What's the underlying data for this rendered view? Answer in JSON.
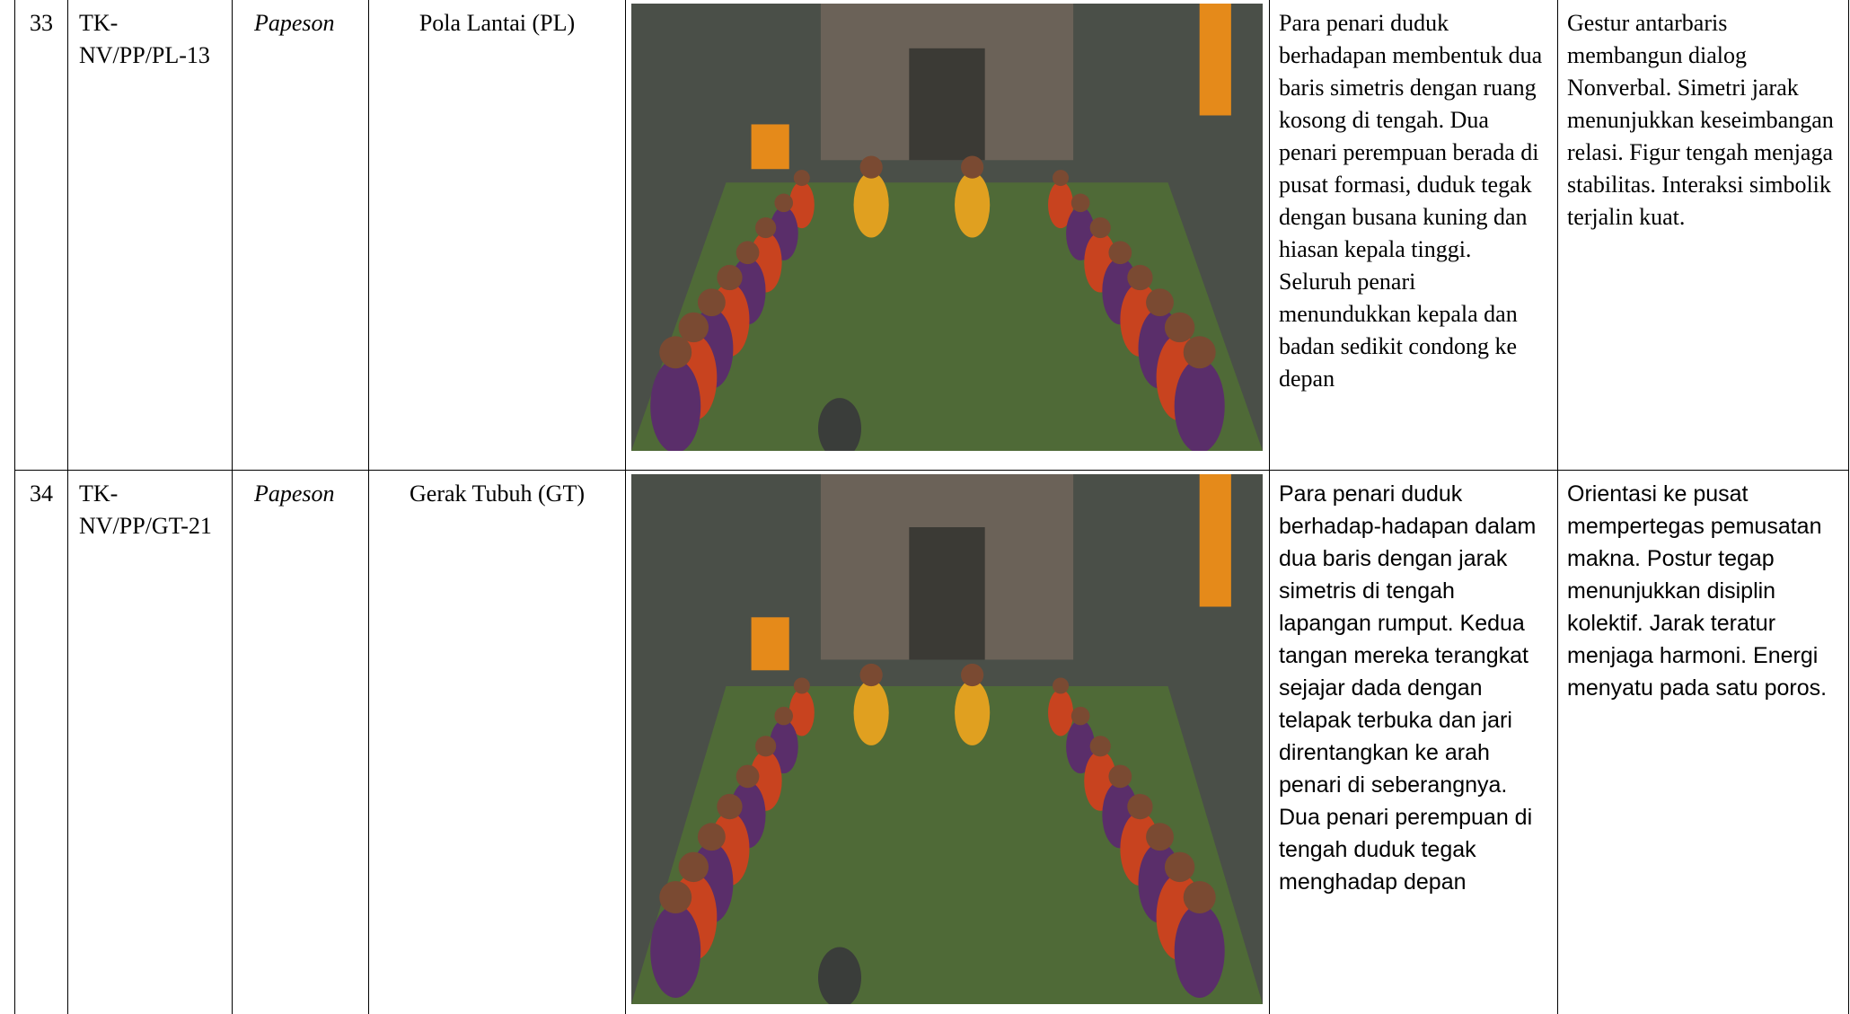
{
  "table": {
    "rows": [
      [
        "33",
        "TK-NV/PP/PL-13",
        "Papeson",
        "Pola Lantai (PL)",
        "Para penari duduk berhadapan membentuk dua baris simetris dengan ruang kosong di tengah. Dua penari perempuan berada di pusat formasi, duduk tegak dengan busana kuning dan hiasan kepala tinggi. Seluruh penari menundukkan kepala dan badan sedikit condong ke depan",
        "Gestur antarbaris membangun dialog Nonverbal. Simetri jarak menunjukkan keseimbangan relasi. Figur tengah menjaga stabilitas. Interaksi simbolik terjalin kuat."
      ],
      [
        "34",
        "TK-NV/PP/GT-21",
        "Papeson",
        "Gerak Tubuh (GT)",
        "Para penari duduk berhadap-hadapan dalam dua baris dengan jarak simetris di tengah lapangan rumput. Kedua tangan mereka terangkat sejajar dada dengan telapak terbuka dan jari direntangkan ke arah penari di seberangnya. Dua penari perempuan di tengah duduk tegak menghadap depan",
        "Orientasi ke pusat mempertegas pemusatan makna. Postur tegap menunjukkan disiplin kolektif. Jarak teratur menjaga harmoni. Energi menyatu pada satu poros."
      ]
    ]
  }
}
